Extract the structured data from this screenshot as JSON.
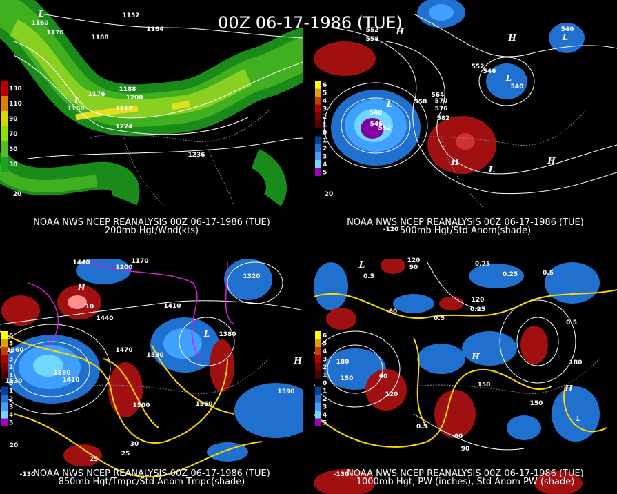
{
  "title": "00Z 06-17-1986 (TUE)",
  "panels": [
    {
      "source": "NOAA NWS NCEP REANALYSIS 00Z 06-17-1986 (TUE)",
      "caption": "200mb Hgt/Wnd(kts)",
      "legend": [
        "130",
        "110",
        "90",
        "70",
        "50",
        "30"
      ],
      "contour_labels": [
        "1152",
        "1164",
        "1176",
        "1188",
        "1176",
        "1188",
        "1200",
        "1212",
        "1224",
        "1236",
        "L",
        "1160",
        "L",
        "1168",
        "20"
      ]
    },
    {
      "source": "NOAA NWS NCEP REANALYSIS 00Z 06-17-1986 (TUE)",
      "caption": "500mb Hgt/Std Anom(shade)",
      "legend": [
        "6",
        "5",
        "4",
        "3",
        "2",
        "1",
        "0",
        "1",
        "2",
        "3",
        "4",
        "5"
      ],
      "contour_labels": [
        "552",
        "558",
        "H",
        "552",
        "546",
        "564",
        "570",
        "576",
        "582",
        "558",
        "540",
        "546",
        "552",
        "L",
        "540",
        "L",
        "540",
        "L",
        "H",
        "H",
        "L",
        "H",
        "-120",
        "20"
      ]
    },
    {
      "source": "NOAA NWS NCEP REANALYSIS 00Z 06-17-1986 (TUE)",
      "caption": "850mb Hgt/Tmpc/Std Anom Tmpc(shade)",
      "legend": [
        "6",
        "5",
        "4",
        "3",
        "2",
        "1",
        "0",
        "1",
        "2",
        "3",
        "4",
        "5"
      ],
      "contour_labels": [
        "1440",
        "H",
        "10",
        "1440",
        "1410",
        "1470",
        "1530",
        "1560",
        "1380",
        "1410",
        "1530",
        "1500",
        "1560",
        "1590",
        "H",
        "25",
        "25",
        "30",
        "L",
        "1380",
        "1320",
        "1200",
        "1170",
        "-130",
        "20"
      ]
    },
    {
      "source": "NOAA NWS NCEP REANALYSIS 00Z 06-17-1986 (TUE)",
      "caption": "1000mb Hgt, PW (inches), Std Anom PW (shade)",
      "legend": [
        "6",
        "5",
        "4",
        "3",
        "2",
        "1",
        "0",
        "1",
        "2",
        "3",
        "4",
        "5"
      ],
      "contour_labels": [
        "120",
        "90",
        "0.5",
        "L",
        "0.25",
        "0.25",
        "0.5",
        "60",
        "0.5",
        "0.25",
        "120",
        "180",
        "150",
        "60",
        "120",
        "150",
        "H",
        "0.5",
        "60",
        "90",
        "150",
        "180",
        "H",
        "1",
        "0.5",
        "-130"
      ]
    }
  ]
}
